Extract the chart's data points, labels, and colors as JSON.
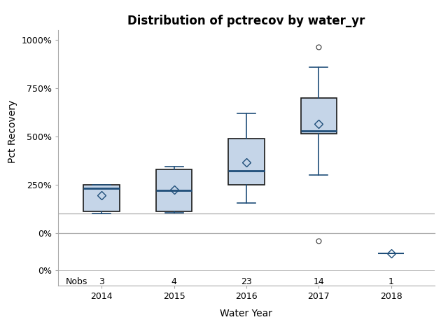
{
  "title": "Distribution of pctrecov by water_yr",
  "xlabel": "Water Year",
  "ylabel": "Pct Recovery",
  "categories": [
    2014,
    2015,
    2016,
    2017,
    2018
  ],
  "nobs": [
    3,
    4,
    23,
    14,
    1
  ],
  "box_stats": [
    {
      "q1": 1.1,
      "median": 2.3,
      "q3": 2.5,
      "whislo": 1.0,
      "whishi": 2.5,
      "mean": 1.95,
      "fliers": []
    },
    {
      "q1": 1.1,
      "median": 2.2,
      "q3": 3.3,
      "whislo": 1.05,
      "whishi": 3.45,
      "mean": 2.25,
      "fliers": []
    },
    {
      "q1": 2.5,
      "median": 3.2,
      "q3": 4.9,
      "whislo": 1.55,
      "whishi": 6.2,
      "mean": 3.65,
      "fliers": []
    },
    {
      "q1": 5.15,
      "median": 5.3,
      "q3": 7.0,
      "whislo": 3.0,
      "whishi": 8.6,
      "mean": 5.65,
      "fliers": [
        9.65,
        0.95
      ]
    },
    {
      "q1": 0.55,
      "median": 0.55,
      "q3": 0.55,
      "whislo": 0.55,
      "whishi": 0.55,
      "mean": 0.55,
      "fliers": []
    }
  ],
  "box_color": "#c5d5e8",
  "box_edge_color": "#1a1a1a",
  "median_color": "#1f4e79",
  "whisker_color": "#1f4e79",
  "cap_color": "#1f4e79",
  "mean_marker_color": "#1f4e79",
  "flier_color": "#333333",
  "flier2017_below": 0.95,
  "flier2017_above": 9.65,
  "mean2018": 0.55,
  "ylim_main": [
    0.0,
    10.5
  ],
  "yticks_main": [
    0.0,
    2.5,
    5.0,
    7.5,
    10.0
  ],
  "ytick_labels_main": [
    "0%",
    "250%",
    "500%",
    "750%",
    "1000%"
  ],
  "ylim_lower": [
    -0.5,
    1.2
  ],
  "yticks_lower": [
    0.0
  ],
  "ytick_labels_lower": [
    "0%"
  ],
  "ref_line_y": 1.0,
  "background_color": "#ffffff",
  "box_width": 0.5,
  "title_fontsize": 12,
  "label_fontsize": 10,
  "tick_fontsize": 9,
  "nobs_label": "Nobs"
}
